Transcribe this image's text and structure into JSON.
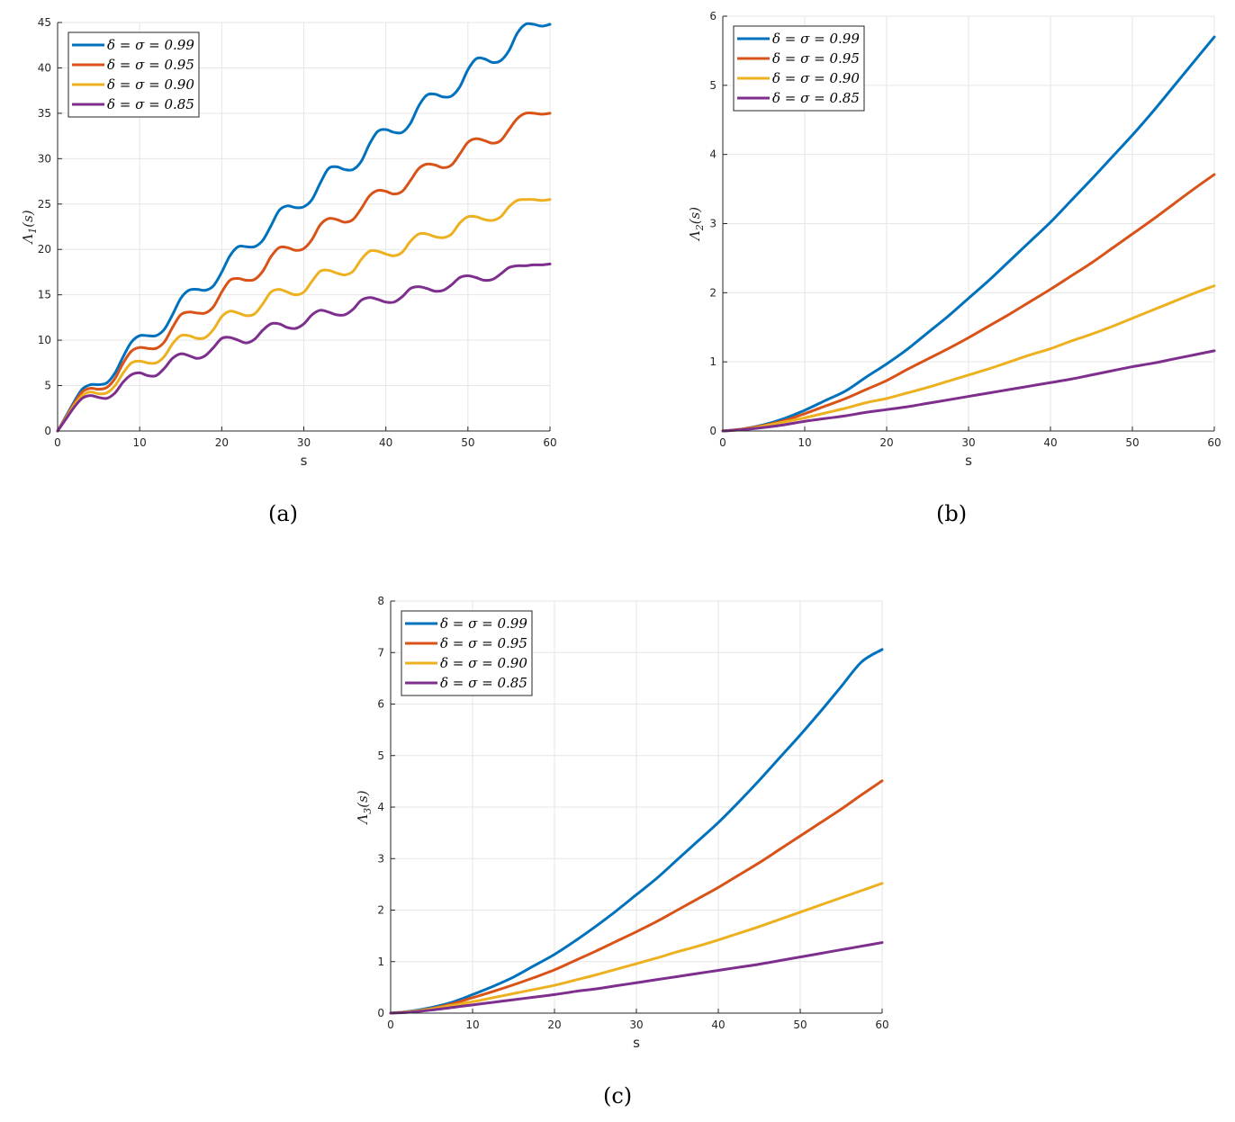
{
  "colors": [
    "#0072BD",
    "#D95319",
    "#EDB120",
    "#7E2F8E"
  ],
  "chart_data": [
    {
      "type": "line",
      "caption": "(a)",
      "xlabel": "s",
      "ylabel": "Λ1(s)",
      "xlim": [
        0,
        60
      ],
      "ylim": [
        0,
        45
      ],
      "xticks": [
        0,
        10,
        20,
        30,
        40,
        50,
        60
      ],
      "yticks": [
        0,
        5,
        10,
        15,
        20,
        25,
        30,
        35,
        40,
        45
      ],
      "grid": true,
      "legend_position": "top-left",
      "series": [
        {
          "name": "δ = σ = 0.99",
          "x": [
            0,
            1,
            2,
            3,
            4,
            5,
            6,
            7,
            8,
            9,
            10,
            11,
            12,
            13,
            14,
            15,
            16,
            17,
            18,
            19,
            20,
            21,
            22,
            23,
            24,
            25,
            26,
            27,
            28,
            29,
            30,
            31,
            32,
            33,
            34,
            35,
            36,
            37,
            38,
            39,
            40,
            41,
            42,
            43,
            44,
            45,
            46,
            47,
            48,
            49,
            50,
            51,
            52,
            53,
            54,
            55,
            56,
            57,
            58,
            59,
            60
          ],
          "y": [
            0,
            1.6,
            3.2,
            4.6,
            5.1,
            5.1,
            5.3,
            6.4,
            8.2,
            9.8,
            10.5,
            10.5,
            10.5,
            11.2,
            12.8,
            14.6,
            15.5,
            15.6,
            15.5,
            16.0,
            17.5,
            19.3,
            20.3,
            20.3,
            20.3,
            21.0,
            22.6,
            24.3,
            24.8,
            24.6,
            24.7,
            25.5,
            27.3,
            28.9,
            29.1,
            28.8,
            28.8,
            29.7,
            31.6,
            33.0,
            33.2,
            32.9,
            32.9,
            33.9,
            35.8,
            37.0,
            37.1,
            36.8,
            36.9,
            37.9,
            39.8,
            41.0,
            41.0,
            40.6,
            40.8,
            41.9,
            43.8,
            44.8,
            44.8,
            44.6,
            44.8
          ]
        },
        {
          "name": "δ = σ = 0.95",
          "x": [
            0,
            1,
            2,
            3,
            4,
            5,
            6,
            7,
            8,
            9,
            10,
            11,
            12,
            13,
            14,
            15,
            16,
            17,
            18,
            19,
            20,
            21,
            22,
            23,
            24,
            25,
            26,
            27,
            28,
            29,
            30,
            31,
            32,
            33,
            34,
            35,
            36,
            37,
            38,
            39,
            40,
            41,
            42,
            43,
            44,
            45,
            46,
            47,
            48,
            49,
            50,
            51,
            52,
            53,
            54,
            55,
            56,
            57,
            58,
            59,
            60
          ],
          "y": [
            0,
            1.5,
            3.0,
            4.3,
            4.7,
            4.6,
            4.8,
            5.8,
            7.5,
            8.8,
            9.2,
            9.1,
            9.1,
            9.8,
            11.4,
            12.8,
            13.1,
            13.0,
            13.0,
            13.7,
            15.3,
            16.6,
            16.8,
            16.6,
            16.7,
            17.6,
            19.2,
            20.2,
            20.2,
            19.9,
            20.1,
            21.1,
            22.7,
            23.4,
            23.3,
            23.0,
            23.3,
            24.5,
            25.9,
            26.5,
            26.4,
            26.1,
            26.4,
            27.6,
            28.9,
            29.4,
            29.3,
            29.0,
            29.3,
            30.5,
            31.8,
            32.2,
            32.0,
            31.7,
            32.0,
            33.2,
            34.4,
            35.0,
            35.0,
            34.9,
            35.0
          ]
        },
        {
          "name": "δ = σ = 0.90",
          "x": [
            0,
            1,
            2,
            3,
            4,
            5,
            6,
            7,
            8,
            9,
            10,
            11,
            12,
            13,
            14,
            15,
            16,
            17,
            18,
            19,
            20,
            21,
            22,
            23,
            24,
            25,
            26,
            27,
            28,
            29,
            30,
            31,
            32,
            33,
            34,
            35,
            36,
            37,
            38,
            39,
            40,
            41,
            42,
            43,
            44,
            45,
            46,
            47,
            48,
            49,
            50,
            51,
            52,
            53,
            54,
            55,
            56,
            57,
            58,
            59,
            60
          ],
          "y": [
            0,
            1.4,
            2.8,
            3.9,
            4.3,
            4.1,
            4.2,
            5.0,
            6.4,
            7.5,
            7.7,
            7.5,
            7.5,
            8.2,
            9.6,
            10.5,
            10.5,
            10.2,
            10.3,
            11.2,
            12.6,
            13.2,
            13.0,
            12.7,
            12.9,
            14.0,
            15.3,
            15.6,
            15.3,
            15.0,
            15.3,
            16.5,
            17.6,
            17.7,
            17.4,
            17.2,
            17.6,
            18.9,
            19.8,
            19.8,
            19.5,
            19.3,
            19.7,
            20.9,
            21.7,
            21.7,
            21.4,
            21.3,
            21.7,
            22.9,
            23.6,
            23.6,
            23.3,
            23.2,
            23.6,
            24.7,
            25.4,
            25.5,
            25.5,
            25.4,
            25.5
          ]
        },
        {
          "name": "δ = σ = 0.85",
          "x": [
            0,
            1,
            2,
            3,
            4,
            5,
            6,
            7,
            8,
            9,
            10,
            11,
            12,
            13,
            14,
            15,
            16,
            17,
            18,
            19,
            20,
            21,
            22,
            23,
            24,
            25,
            26,
            27,
            28,
            29,
            30,
            31,
            32,
            33,
            34,
            35,
            36,
            37,
            38,
            39,
            40,
            41,
            42,
            43,
            44,
            45,
            46,
            47,
            48,
            49,
            50,
            51,
            52,
            53,
            54,
            55,
            56,
            57,
            58,
            59,
            60
          ],
          "y": [
            0,
            1.3,
            2.6,
            3.6,
            3.9,
            3.7,
            3.6,
            4.2,
            5.4,
            6.2,
            6.4,
            6.1,
            6.1,
            6.9,
            8.0,
            8.5,
            8.3,
            8.0,
            8.3,
            9.2,
            10.2,
            10.3,
            10.0,
            9.7,
            10.1,
            11.1,
            11.8,
            11.8,
            11.4,
            11.3,
            11.8,
            12.8,
            13.3,
            13.1,
            12.8,
            12.8,
            13.4,
            14.4,
            14.7,
            14.5,
            14.2,
            14.2,
            14.8,
            15.7,
            15.9,
            15.7,
            15.4,
            15.5,
            16.1,
            16.9,
            17.1,
            16.9,
            16.6,
            16.7,
            17.3,
            18.0,
            18.2,
            18.2,
            18.3,
            18.3,
            18.4
          ]
        }
      ]
    },
    {
      "type": "line",
      "caption": "(b)",
      "xlabel": "s",
      "ylabel": "Λ2(s)",
      "xlim": [
        0,
        60
      ],
      "ylim": [
        0,
        6
      ],
      "xticks": [
        0,
        10,
        20,
        30,
        40,
        50,
        60
      ],
      "yticks": [
        0,
        1,
        2,
        3,
        4,
        5,
        6
      ],
      "grid": true,
      "legend_position": "top-left",
      "series": [
        {
          "name": "δ = σ = 0.99",
          "x": [
            0,
            2.5,
            5,
            7.5,
            10,
            12.5,
            15,
            17.5,
            20,
            22.5,
            25,
            27.5,
            30,
            32.5,
            35,
            37.5,
            40,
            42.5,
            45,
            47.5,
            50,
            52.5,
            55,
            57.5,
            60
          ],
          "y": [
            0,
            0.03,
            0.09,
            0.18,
            0.3,
            0.44,
            0.58,
            0.78,
            0.97,
            1.18,
            1.42,
            1.66,
            1.92,
            2.18,
            2.46,
            2.74,
            3.02,
            3.33,
            3.64,
            3.96,
            4.28,
            4.62,
            4.98,
            5.34,
            5.7
          ]
        },
        {
          "name": "δ = σ = 0.95",
          "x": [
            0,
            2.5,
            5,
            7.5,
            10,
            12.5,
            15,
            17.5,
            20,
            22.5,
            25,
            27.5,
            30,
            32.5,
            35,
            37.5,
            40,
            42.5,
            45,
            47.5,
            50,
            52.5,
            55,
            57.5,
            60
          ],
          "y": [
            0,
            0.03,
            0.08,
            0.15,
            0.25,
            0.36,
            0.47,
            0.6,
            0.73,
            0.89,
            1.04,
            1.19,
            1.35,
            1.52,
            1.69,
            1.87,
            2.05,
            2.24,
            2.43,
            2.64,
            2.85,
            3.06,
            3.28,
            3.5,
            3.71
          ]
        },
        {
          "name": "δ = σ = 0.90",
          "x": [
            0,
            2.5,
            5,
            7.5,
            10,
            12.5,
            15,
            17.5,
            20,
            22.5,
            25,
            27.5,
            30,
            32.5,
            35,
            37.5,
            40,
            42.5,
            45,
            47.5,
            50,
            52.5,
            55,
            57.5,
            60
          ],
          "y": [
            0,
            0.02,
            0.07,
            0.13,
            0.19,
            0.26,
            0.33,
            0.41,
            0.47,
            0.55,
            0.63,
            0.72,
            0.81,
            0.9,
            1.0,
            1.1,
            1.19,
            1.3,
            1.4,
            1.51,
            1.63,
            1.75,
            1.87,
            1.99,
            2.1
          ]
        },
        {
          "name": "δ = σ = 0.85",
          "x": [
            0,
            2.5,
            5,
            7.5,
            10,
            12.5,
            15,
            17.5,
            20,
            22.5,
            25,
            27.5,
            30,
            32.5,
            35,
            37.5,
            40,
            42.5,
            45,
            47.5,
            50,
            52.5,
            55,
            57.5,
            60
          ],
          "y": [
            0,
            0.02,
            0.05,
            0.09,
            0.14,
            0.18,
            0.22,
            0.27,
            0.31,
            0.35,
            0.4,
            0.45,
            0.5,
            0.55,
            0.6,
            0.65,
            0.7,
            0.75,
            0.81,
            0.87,
            0.93,
            0.98,
            1.04,
            1.1,
            1.16
          ]
        }
      ]
    },
    {
      "type": "line",
      "caption": "(c)",
      "xlabel": "s",
      "ylabel": "Λ3(s)",
      "xlim": [
        0,
        60
      ],
      "ylim": [
        0,
        8
      ],
      "xticks": [
        0,
        10,
        20,
        30,
        40,
        50,
        60
      ],
      "yticks": [
        0,
        1,
        2,
        3,
        4,
        5,
        6,
        7,
        8
      ],
      "grid": true,
      "legend_position": "top-left",
      "series": [
        {
          "name": "δ = σ = 0.99",
          "x": [
            0,
            2.5,
            5,
            7.5,
            10,
            12.5,
            15,
            17.5,
            20,
            22.5,
            25,
            27.5,
            30,
            32.5,
            35,
            37.5,
            40,
            42.5,
            45,
            47.5,
            50,
            52.5,
            55,
            57.5,
            60
          ],
          "y": [
            0,
            0.04,
            0.11,
            0.21,
            0.36,
            0.52,
            0.7,
            0.92,
            1.14,
            1.4,
            1.68,
            1.98,
            2.3,
            2.62,
            2.98,
            3.34,
            3.7,
            4.1,
            4.52,
            4.96,
            5.4,
            5.86,
            6.34,
            6.82,
            7.06
          ]
        },
        {
          "name": "δ = σ = 0.95",
          "x": [
            0,
            2.5,
            5,
            7.5,
            10,
            12.5,
            15,
            17.5,
            20,
            22.5,
            25,
            27.5,
            30,
            32.5,
            35,
            37.5,
            40,
            42.5,
            45,
            47.5,
            50,
            52.5,
            55,
            57.5,
            60
          ],
          "y": [
            0,
            0.03,
            0.09,
            0.18,
            0.3,
            0.42,
            0.55,
            0.69,
            0.84,
            1.02,
            1.2,
            1.39,
            1.58,
            1.78,
            2.0,
            2.22,
            2.44,
            2.68,
            2.92,
            3.18,
            3.44,
            3.7,
            3.96,
            4.24,
            4.51
          ]
        },
        {
          "name": "δ = σ = 0.90",
          "x": [
            0,
            2.5,
            5,
            7.5,
            10,
            12.5,
            15,
            17.5,
            20,
            22.5,
            25,
            27.5,
            30,
            32.5,
            35,
            37.5,
            40,
            42.5,
            45,
            47.5,
            50,
            52.5,
            55,
            57.5,
            60
          ],
          "y": [
            0,
            0.03,
            0.08,
            0.15,
            0.22,
            0.3,
            0.38,
            0.46,
            0.54,
            0.64,
            0.74,
            0.85,
            0.96,
            1.07,
            1.19,
            1.3,
            1.42,
            1.55,
            1.68,
            1.82,
            1.96,
            2.1,
            2.24,
            2.38,
            2.52
          ]
        },
        {
          "name": "δ = σ = 0.85",
          "x": [
            0,
            2.5,
            5,
            7.5,
            10,
            12.5,
            15,
            17.5,
            20,
            22.5,
            25,
            27.5,
            30,
            32.5,
            35,
            37.5,
            40,
            42.5,
            45,
            47.5,
            50,
            52.5,
            55,
            57.5,
            60
          ],
          "y": [
            0,
            0.02,
            0.06,
            0.11,
            0.16,
            0.21,
            0.26,
            0.31,
            0.36,
            0.42,
            0.47,
            0.53,
            0.59,
            0.65,
            0.71,
            0.77,
            0.83,
            0.89,
            0.95,
            1.02,
            1.09,
            1.16,
            1.23,
            1.3,
            1.37
          ]
        }
      ]
    }
  ]
}
